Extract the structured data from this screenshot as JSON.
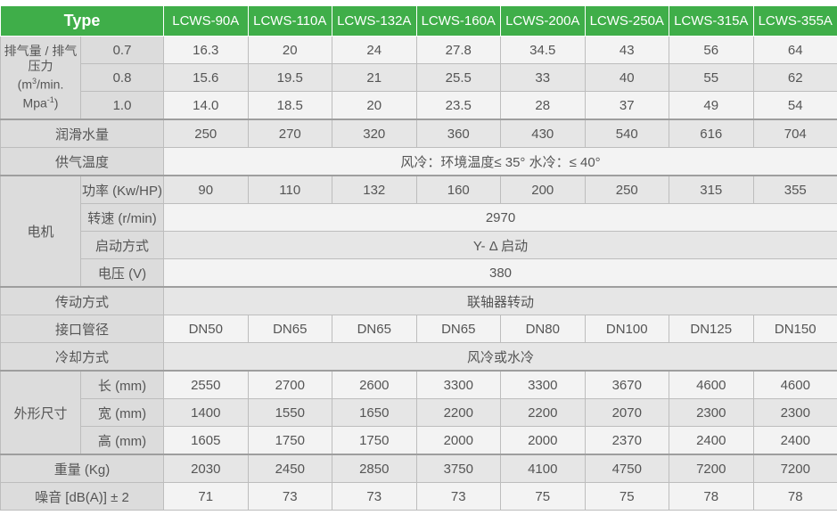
{
  "header": {
    "type_label": "Type",
    "models": [
      "LCWS-90A",
      "LCWS-110A",
      "LCWS-132A",
      "LCWS-160A",
      "LCWS-200A",
      "LCWS-250A",
      "LCWS-315A",
      "LCWS-355A"
    ]
  },
  "displacement": {
    "label_a": "排气量 / 排气压力",
    "label_b": "(m",
    "label_c": "3",
    "label_d": "/min.",
    "label_e": "Mpa",
    "label_f": "-1",
    "label_g": ")",
    "rows": [
      {
        "pressure": "0.7",
        "values": [
          "16.3",
          "20",
          "24",
          "27.8",
          "34.5",
          "43",
          "56",
          "64"
        ]
      },
      {
        "pressure": "0.8",
        "values": [
          "15.6",
          "19.5",
          "21",
          "25.5",
          "33",
          "40",
          "55",
          "62"
        ]
      },
      {
        "pressure": "1.0",
        "values": [
          "14.0",
          "18.5",
          "20",
          "23.5",
          "28",
          "37",
          "49",
          "54"
        ]
      }
    ]
  },
  "lubrication": {
    "label": "润滑水量",
    "values": [
      "250",
      "270",
      "320",
      "360",
      "430",
      "540",
      "616",
      "704"
    ]
  },
  "supply_temp": {
    "label": "供气温度",
    "value": "风冷：环境温度≤ 35°   水冷：≤ 40°"
  },
  "motor": {
    "label": "电机",
    "power": {
      "label": "功率 (Kw/HP)",
      "values": [
        "90",
        "110",
        "132",
        "160",
        "200",
        "250",
        "315",
        "355"
      ]
    },
    "speed": {
      "label": "转速 (r/min)",
      "value": "2970"
    },
    "start": {
      "label": "启动方式",
      "value": "Y- Δ 启动"
    },
    "voltage": {
      "label": "电压 (V)",
      "value": "380"
    }
  },
  "drive": {
    "label": "传动方式",
    "value": "联轴器转动"
  },
  "pipe": {
    "label": "接口管径",
    "values": [
      "DN50",
      "DN65",
      "DN65",
      "DN65",
      "DN80",
      "DN100",
      "DN125",
      "DN150"
    ]
  },
  "cooling": {
    "label": "冷却方式",
    "value": "风冷或水冷"
  },
  "dimensions": {
    "label": "外形尺寸",
    "length": {
      "label": "长 (mm)",
      "values": [
        "2550",
        "2700",
        "2600",
        "3300",
        "3300",
        "3670",
        "4600",
        "4600"
      ]
    },
    "width": {
      "label": "宽 (mm)",
      "values": [
        "1400",
        "1550",
        "1650",
        "2200",
        "2200",
        "2070",
        "2300",
        "2300"
      ]
    },
    "height": {
      "label": "高 (mm)",
      "values": [
        "1605",
        "1750",
        "1750",
        "2000",
        "2000",
        "2370",
        "2400",
        "2400"
      ]
    }
  },
  "weight": {
    "label": "重量 (Kg)",
    "values": [
      "2030",
      "2450",
      "2850",
      "3750",
      "4100",
      "4750",
      "7200",
      "7200"
    ]
  },
  "noise": {
    "label": "噪音 [dB(A)] ± 2",
    "values": [
      "71",
      "73",
      "73",
      "73",
      "75",
      "75",
      "78",
      "78"
    ]
  }
}
